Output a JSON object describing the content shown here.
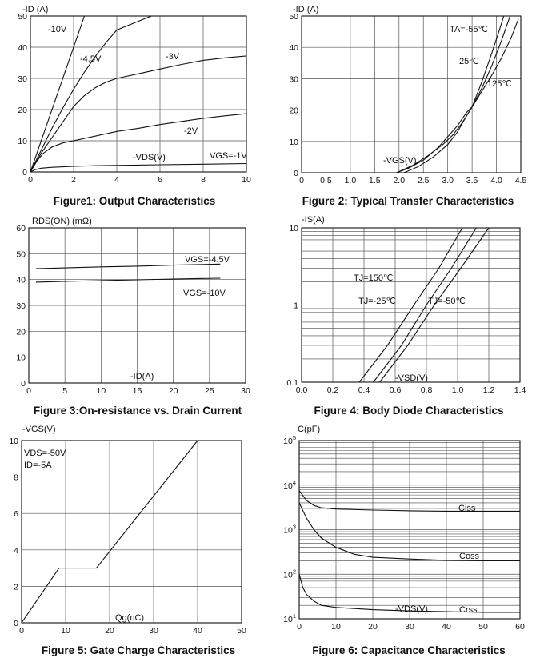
{
  "chart_data": [
    {
      "id": "fig1",
      "type": "line",
      "title": "Figure1: Output Characteristics",
      "ylabel": "-ID (A)",
      "xlabel_annotation": "-VDS(V)",
      "xlim": [
        0,
        10
      ],
      "ylim": [
        0,
        50
      ],
      "xticks": [
        "0",
        "2",
        "4",
        "6",
        "8",
        "10"
      ],
      "yticks": [
        "0",
        "10",
        "20",
        "30",
        "40",
        "50"
      ],
      "series": [
        {
          "name": "-10V",
          "x": [
            0,
            0.4,
            0.8,
            1.2,
            1.6,
            2.0,
            2.5
          ],
          "y": [
            0,
            8,
            16,
            24,
            32,
            40,
            50
          ]
        },
        {
          "name": "-4.5V",
          "x": [
            0,
            0.5,
            1,
            1.5,
            2,
            2.5,
            3,
            3.5,
            4,
            5.6
          ],
          "y": [
            0,
            7,
            14,
            20.5,
            26.5,
            32,
            37,
            41.5,
            45.5,
            50
          ]
        },
        {
          "name": "-3V",
          "x": [
            0,
            0.5,
            1,
            1.5,
            2,
            2.5,
            3,
            3.5,
            4,
            5,
            6,
            7,
            8,
            9,
            10
          ],
          "y": [
            0,
            6,
            11,
            16,
            21,
            24.5,
            27,
            28.8,
            30,
            31.5,
            33,
            34.5,
            35.8,
            36.6,
            37.2
          ]
        },
        {
          "name": "-2V",
          "x": [
            0,
            0.3,
            0.6,
            1,
            1.5,
            2,
            3,
            4,
            5,
            6,
            7,
            8,
            9,
            10
          ],
          "y": [
            0,
            3.5,
            6,
            8,
            9.3,
            10,
            11.5,
            13,
            14,
            15.2,
            16.2,
            17.2,
            18,
            18.7
          ]
        },
        {
          "name": "VGS=-1V",
          "x": [
            0,
            0.2,
            0.5,
            1,
            2,
            3,
            4,
            6,
            8,
            10
          ],
          "y": [
            0,
            0.7,
            1.2,
            1.5,
            1.8,
            2,
            2.1,
            2.3,
            2.5,
            2.7
          ]
        }
      ],
      "annotations": [
        "-10V",
        "-4.5V",
        "-3V",
        "-2V",
        "VGS=-1V"
      ]
    },
    {
      "id": "fig2",
      "type": "line",
      "title": "Figure 2: Typical Transfer Characteristics",
      "ylabel": "-ID (A)",
      "xlabel_annotation": "-VGS(V)",
      "xlim": [
        0,
        4.5
      ],
      "ylim": [
        0,
        50
      ],
      "xticks": [
        "0",
        "0.5",
        "1.0",
        "1.5",
        "2.0",
        "2.5",
        "3.0",
        "3.5",
        "4.0",
        "4.5"
      ],
      "yticks": [
        "0",
        "10",
        "20",
        "30",
        "40",
        "50"
      ],
      "series": [
        {
          "name": "TA=-55℃",
          "x": [
            2.1,
            2.4,
            2.7,
            3.0,
            3.2,
            3.4,
            3.5,
            3.7,
            3.9,
            4.05,
            4.15
          ],
          "y": [
            0,
            2,
            5,
            9,
            13,
            18.5,
            21,
            29,
            38,
            45,
            50
          ]
        },
        {
          "name": "25℃",
          "x": [
            1.95,
            2.2,
            2.5,
            2.8,
            3.0,
            3.2,
            3.4,
            3.5,
            3.7,
            3.9,
            4.1,
            4.28
          ],
          "y": [
            0,
            1.5,
            4,
            8,
            11.5,
            15,
            19.5,
            21,
            27,
            34,
            42,
            50
          ]
        },
        {
          "name": "125℃",
          "x": [
            1.95,
            2.3,
            2.6,
            2.9,
            3.1,
            3.3,
            3.5,
            3.7,
            3.9,
            4.1,
            4.3,
            4.45
          ],
          "y": [
            0,
            2.5,
            5.5,
            9,
            12,
            16,
            21,
            26,
            31,
            36.5,
            43,
            49
          ]
        }
      ],
      "annotations": [
        "TA=-55℃",
        "25℃",
        "125℃"
      ]
    },
    {
      "id": "fig3",
      "type": "line",
      "title": "Figure 3:On-resistance vs. Drain Current",
      "ylabel": "RDS(ON) (mΩ)",
      "xlabel_annotation": "-ID(A)",
      "xlim": [
        0,
        30
      ],
      "ylim": [
        0,
        60
      ],
      "xticks": [
        "0",
        "5",
        "10",
        "15",
        "20",
        "25",
        "30"
      ],
      "yticks": [
        "0",
        "10",
        "20",
        "30",
        "40",
        "50",
        "60"
      ],
      "series": [
        {
          "name": "VGS=-4.5V",
          "x": [
            1,
            5,
            10,
            15,
            20,
            26.5
          ],
          "y": [
            44.2,
            44.5,
            44.9,
            45.2,
            45.6,
            46
          ]
        },
        {
          "name": "VGS=-10V",
          "x": [
            1,
            5,
            10,
            15,
            20,
            26.5
          ],
          "y": [
            39,
            39.3,
            39.6,
            39.9,
            40.2,
            40.5
          ]
        }
      ],
      "annotations": [
        "VGS=-4.5V",
        "VGS=-10V"
      ]
    },
    {
      "id": "fig4",
      "type": "line",
      "title": "Figure 4: Body Diode Characteristics",
      "ylabel": "-IS(A)",
      "xlabel_annotation": "-VSD(V)",
      "xlim": [
        0,
        1.4
      ],
      "ylim": [
        0.1,
        10
      ],
      "yscale": "log",
      "xticks": [
        "0.0",
        "0.2",
        "0.4",
        "0.6",
        "0.8",
        "1.0",
        "1.2",
        "1.4"
      ],
      "yticks": [
        "0.1",
        "1",
        "10"
      ],
      "series": [
        {
          "name": "TJ=150℃",
          "x": [
            0.37,
            0.55,
            0.72,
            0.88,
            1.03
          ],
          "y": [
            0.1,
            0.3,
            1,
            3,
            10
          ]
        },
        {
          "name": "TJ=-25℃",
          "x": [
            0.46,
            0.64,
            0.8,
            0.96,
            1.12
          ],
          "y": [
            0.1,
            0.3,
            1,
            3,
            10
          ]
        },
        {
          "name": "TJ=-50℃",
          "x": [
            0.5,
            0.68,
            0.85,
            1.02,
            1.2
          ],
          "y": [
            0.1,
            0.3,
            1,
            3,
            10
          ]
        }
      ],
      "annotations": [
        "TJ=150℃",
        "TJ=-25℃",
        "TJ=-50℃"
      ]
    },
    {
      "id": "fig5",
      "type": "line",
      "title": "Figure 5: Gate Charge Characteristics",
      "ylabel": "-VGS(V)",
      "xlabel_annotation": "Qg(nC)",
      "xlim": [
        0,
        50
      ],
      "ylim": [
        0,
        10
      ],
      "xticks": [
        "0",
        "10",
        "20",
        "30",
        "40",
        "50"
      ],
      "yticks": [
        "0",
        "2",
        "4",
        "6",
        "8",
        "10"
      ],
      "series": [
        {
          "name": "VGS",
          "x": [
            0,
            8.5,
            17,
            40
          ],
          "y": [
            0,
            3,
            3,
            10
          ]
        }
      ],
      "annotations": [
        "VDS=-50V",
        "ID=-5A"
      ]
    },
    {
      "id": "fig6",
      "type": "line",
      "title": "Figure 6: Capacitance Characteristics",
      "ylabel": "C(pF)",
      "xlabel_annotation": "-VDS(V)",
      "xlim": [
        0,
        60
      ],
      "ylim": [
        10,
        100000
      ],
      "yscale": "log",
      "xticks": [
        "0",
        "10",
        "20",
        "30",
        "40",
        "50",
        "60"
      ],
      "yticks": [
        "10^1",
        "10^2",
        "10^3",
        "10^4",
        "10^5"
      ],
      "series": [
        {
          "name": "Ciss",
          "x": [
            0,
            2,
            4,
            6,
            10,
            20,
            30,
            40,
            50,
            60
          ],
          "y": [
            7500,
            4500,
            3500,
            3100,
            2900,
            2750,
            2650,
            2600,
            2600,
            2600
          ]
        },
        {
          "name": "Coss",
          "x": [
            0,
            2,
            4,
            6,
            10,
            15,
            20,
            30,
            40,
            50,
            60
          ],
          "y": [
            4000,
            1800,
            1000,
            650,
            400,
            280,
            240,
            220,
            205,
            200,
            200
          ]
        },
        {
          "name": "Crss",
          "x": [
            0,
            1,
            2,
            4,
            6,
            10,
            15,
            20,
            30,
            40,
            50,
            60
          ],
          "y": [
            100,
            50,
            35,
            25,
            20,
            18,
            17,
            16,
            15,
            14.5,
            14,
            14
          ]
        }
      ],
      "annotations": [
        "Ciss",
        "Coss",
        "Crss"
      ]
    }
  ],
  "labels": {
    "fig1": {
      "y": "-ID (A)",
      "x": "-VDS(V)",
      "a1": "-10V",
      "a2": "-4.5V",
      "a3": "-3V",
      "a4": "-2V",
      "a5": "VGS=-1V"
    },
    "fig2": {
      "y": "-ID (A)",
      "x": "-VGS(V)",
      "a1": "TA=-55℃",
      "a2": "25℃",
      "a3": "125℃"
    },
    "fig3": {
      "y": "RDS(ON) (mΩ)",
      "x": "-ID(A)",
      "a1": "VGS=-4.5V",
      "a2": "VGS=-10V"
    },
    "fig4": {
      "y": "-IS(A)",
      "x": "-VSD(V)",
      "a1": "TJ=150℃",
      "a2": "TJ=-25℃",
      "a3": "TJ=-50℃"
    },
    "fig5": {
      "y": "-VGS(V)",
      "x": "Qg(nC)",
      "a1": "VDS=-50V",
      "a2": "ID=-5A"
    },
    "fig6": {
      "y": "C(pF)",
      "x": "-VDS(V)",
      "a1": "Ciss",
      "a2": "Coss",
      "a3": "Crss"
    }
  }
}
